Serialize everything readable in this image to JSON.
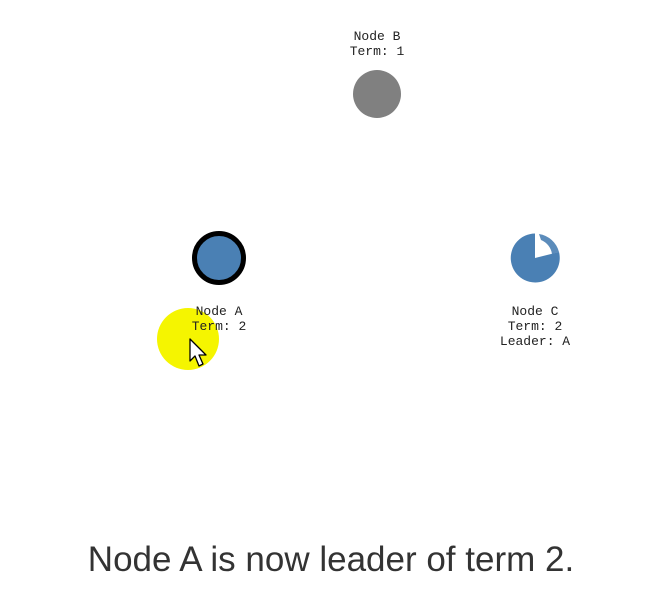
{
  "nodes": {
    "b": {
      "name": "Node B",
      "term": "Term: 1",
      "state": "follower-offline"
    },
    "a": {
      "name": "Node A",
      "term": "Term: 2",
      "state": "leader"
    },
    "c": {
      "name": "Node C",
      "term": "Term: 2",
      "leader": "Leader: A",
      "state": "follower"
    }
  },
  "colors": {
    "active_node": "#4a80b4",
    "offline_node": "#808080",
    "leader_ring": "#000000",
    "cursor_highlight": "#f5f500",
    "label_text": "#222222",
    "caption_text": "#333333"
  },
  "caption": "Node A is now leader of term 2.",
  "cursor_icon": "arrow-pointer-icon"
}
